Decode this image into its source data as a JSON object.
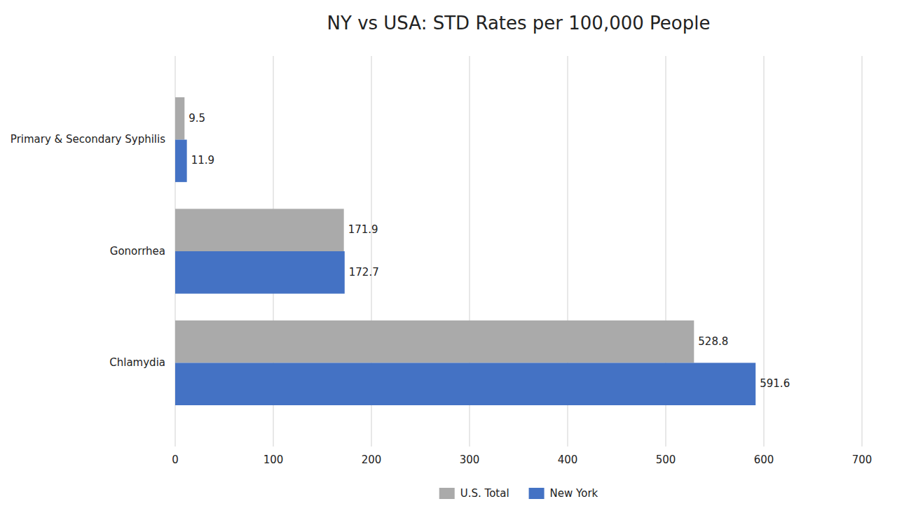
{
  "chart_data": {
    "type": "bar",
    "orientation": "horizontal",
    "title": "NY vs USA: STD Rates per 100,000 People",
    "categories": [
      "Chlamydia",
      "Gonorrhea",
      "Primary & Secondary Syphilis"
    ],
    "series": [
      {
        "name": "U.S. Total",
        "color": "#aaaaaa",
        "values": [
          528.8,
          171.9,
          9.5
        ]
      },
      {
        "name": "New York",
        "color": "#4472c4",
        "values": [
          591.6,
          172.7,
          11.9
        ]
      }
    ],
    "xlim": [
      0,
      700
    ],
    "xticks": [
      0,
      100,
      200,
      300,
      400,
      500,
      600,
      700
    ],
    "grid": true,
    "legend": "bottom",
    "data_labels": true
  }
}
